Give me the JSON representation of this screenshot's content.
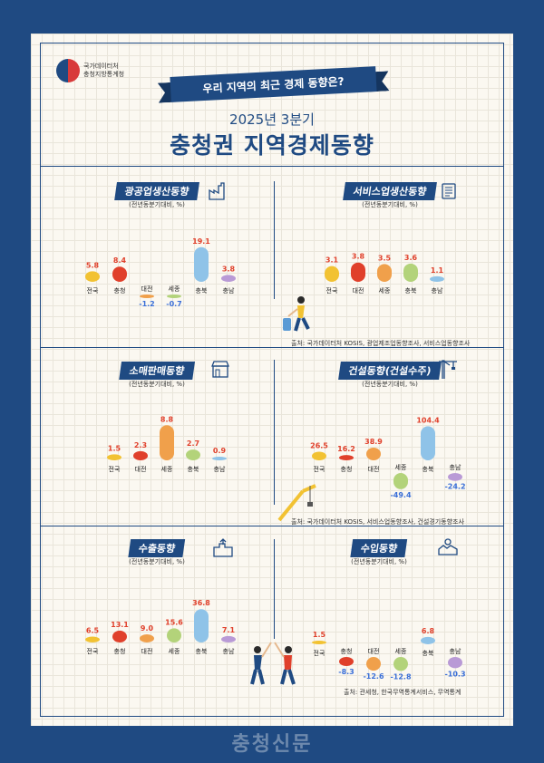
{
  "logo": {
    "line1": "국가데이터처",
    "line2": "충청지방통계청"
  },
  "banner": "우리 지역의 최근 경제 동향은?",
  "subtitle": "2025년 3분기",
  "title": "충청권 지역경제동향",
  "source_top": "출처: 국가데이터처 KOSIS, 광업제조업동향조사, 서비스업동향조사",
  "source_mid": "출처: 국가데이터처 KOSIS, 서비스업동향조사, 건설경기동향조사",
  "source_bot": "출처: 관세청, 한국무역통계서비스, 무역통계",
  "watermark": "충청신문",
  "colors": {
    "navy": "#1f4a82",
    "pos": "#e0402b",
    "neg": "#3a6fd8"
  },
  "chart_data": [
    {
      "type": "bar",
      "title": "광공업생산동향",
      "unit": "(전년동분기대비, %)",
      "categories": [
        "전국",
        "충청",
        "대전",
        "세종",
        "충북",
        "충남"
      ],
      "values": [
        5.8,
        8.4,
        -1.2,
        -0.7,
        19.1,
        3.8
      ],
      "icons": "factory-icon"
    },
    {
      "type": "bar",
      "title": "서비스업생산동향",
      "unit": "(전년동분기대비, %)",
      "categories": [
        "전국",
        "대전",
        "세종",
        "충북",
        "충남"
      ],
      "values": [
        3.1,
        3.8,
        3.5,
        3.6,
        1.1
      ],
      "icons": "document-icon"
    },
    {
      "type": "bar",
      "title": "소매판매동향",
      "unit": "(전년동분기대비, %)",
      "categories": [
        "전국",
        "대전",
        "세종",
        "충북",
        "충남"
      ],
      "values": [
        1.5,
        2.3,
        8.8,
        2.7,
        0.9
      ],
      "icons": "store-icon"
    },
    {
      "type": "bar",
      "title": "건설동향(건설수주)",
      "unit": "(전년동분기대비, %)",
      "categories": [
        "전국",
        "충청",
        "대전",
        "세종",
        "충북",
        "충남"
      ],
      "values": [
        26.5,
        16.2,
        38.9,
        -49.4,
        104.4,
        -24.2
      ],
      "icons": "crane-icon"
    },
    {
      "type": "bar",
      "title": "수출동향",
      "unit": "(전년동분기대비, %)",
      "categories": [
        "전국",
        "충청",
        "대전",
        "세종",
        "충북",
        "충남"
      ],
      "values": [
        6.5,
        13.1,
        9.0,
        15.6,
        36.8,
        7.1
      ],
      "icons": "export-icon"
    },
    {
      "type": "bar",
      "title": "수입동향",
      "unit": "(전년동분기대비, %)",
      "categories": [
        "전국",
        "충청",
        "대전",
        "세종",
        "충북",
        "충남"
      ],
      "values": [
        1.5,
        -8.3,
        -12.6,
        -12.8,
        6.8,
        -10.3
      ],
      "icons": "import-icon"
    }
  ]
}
